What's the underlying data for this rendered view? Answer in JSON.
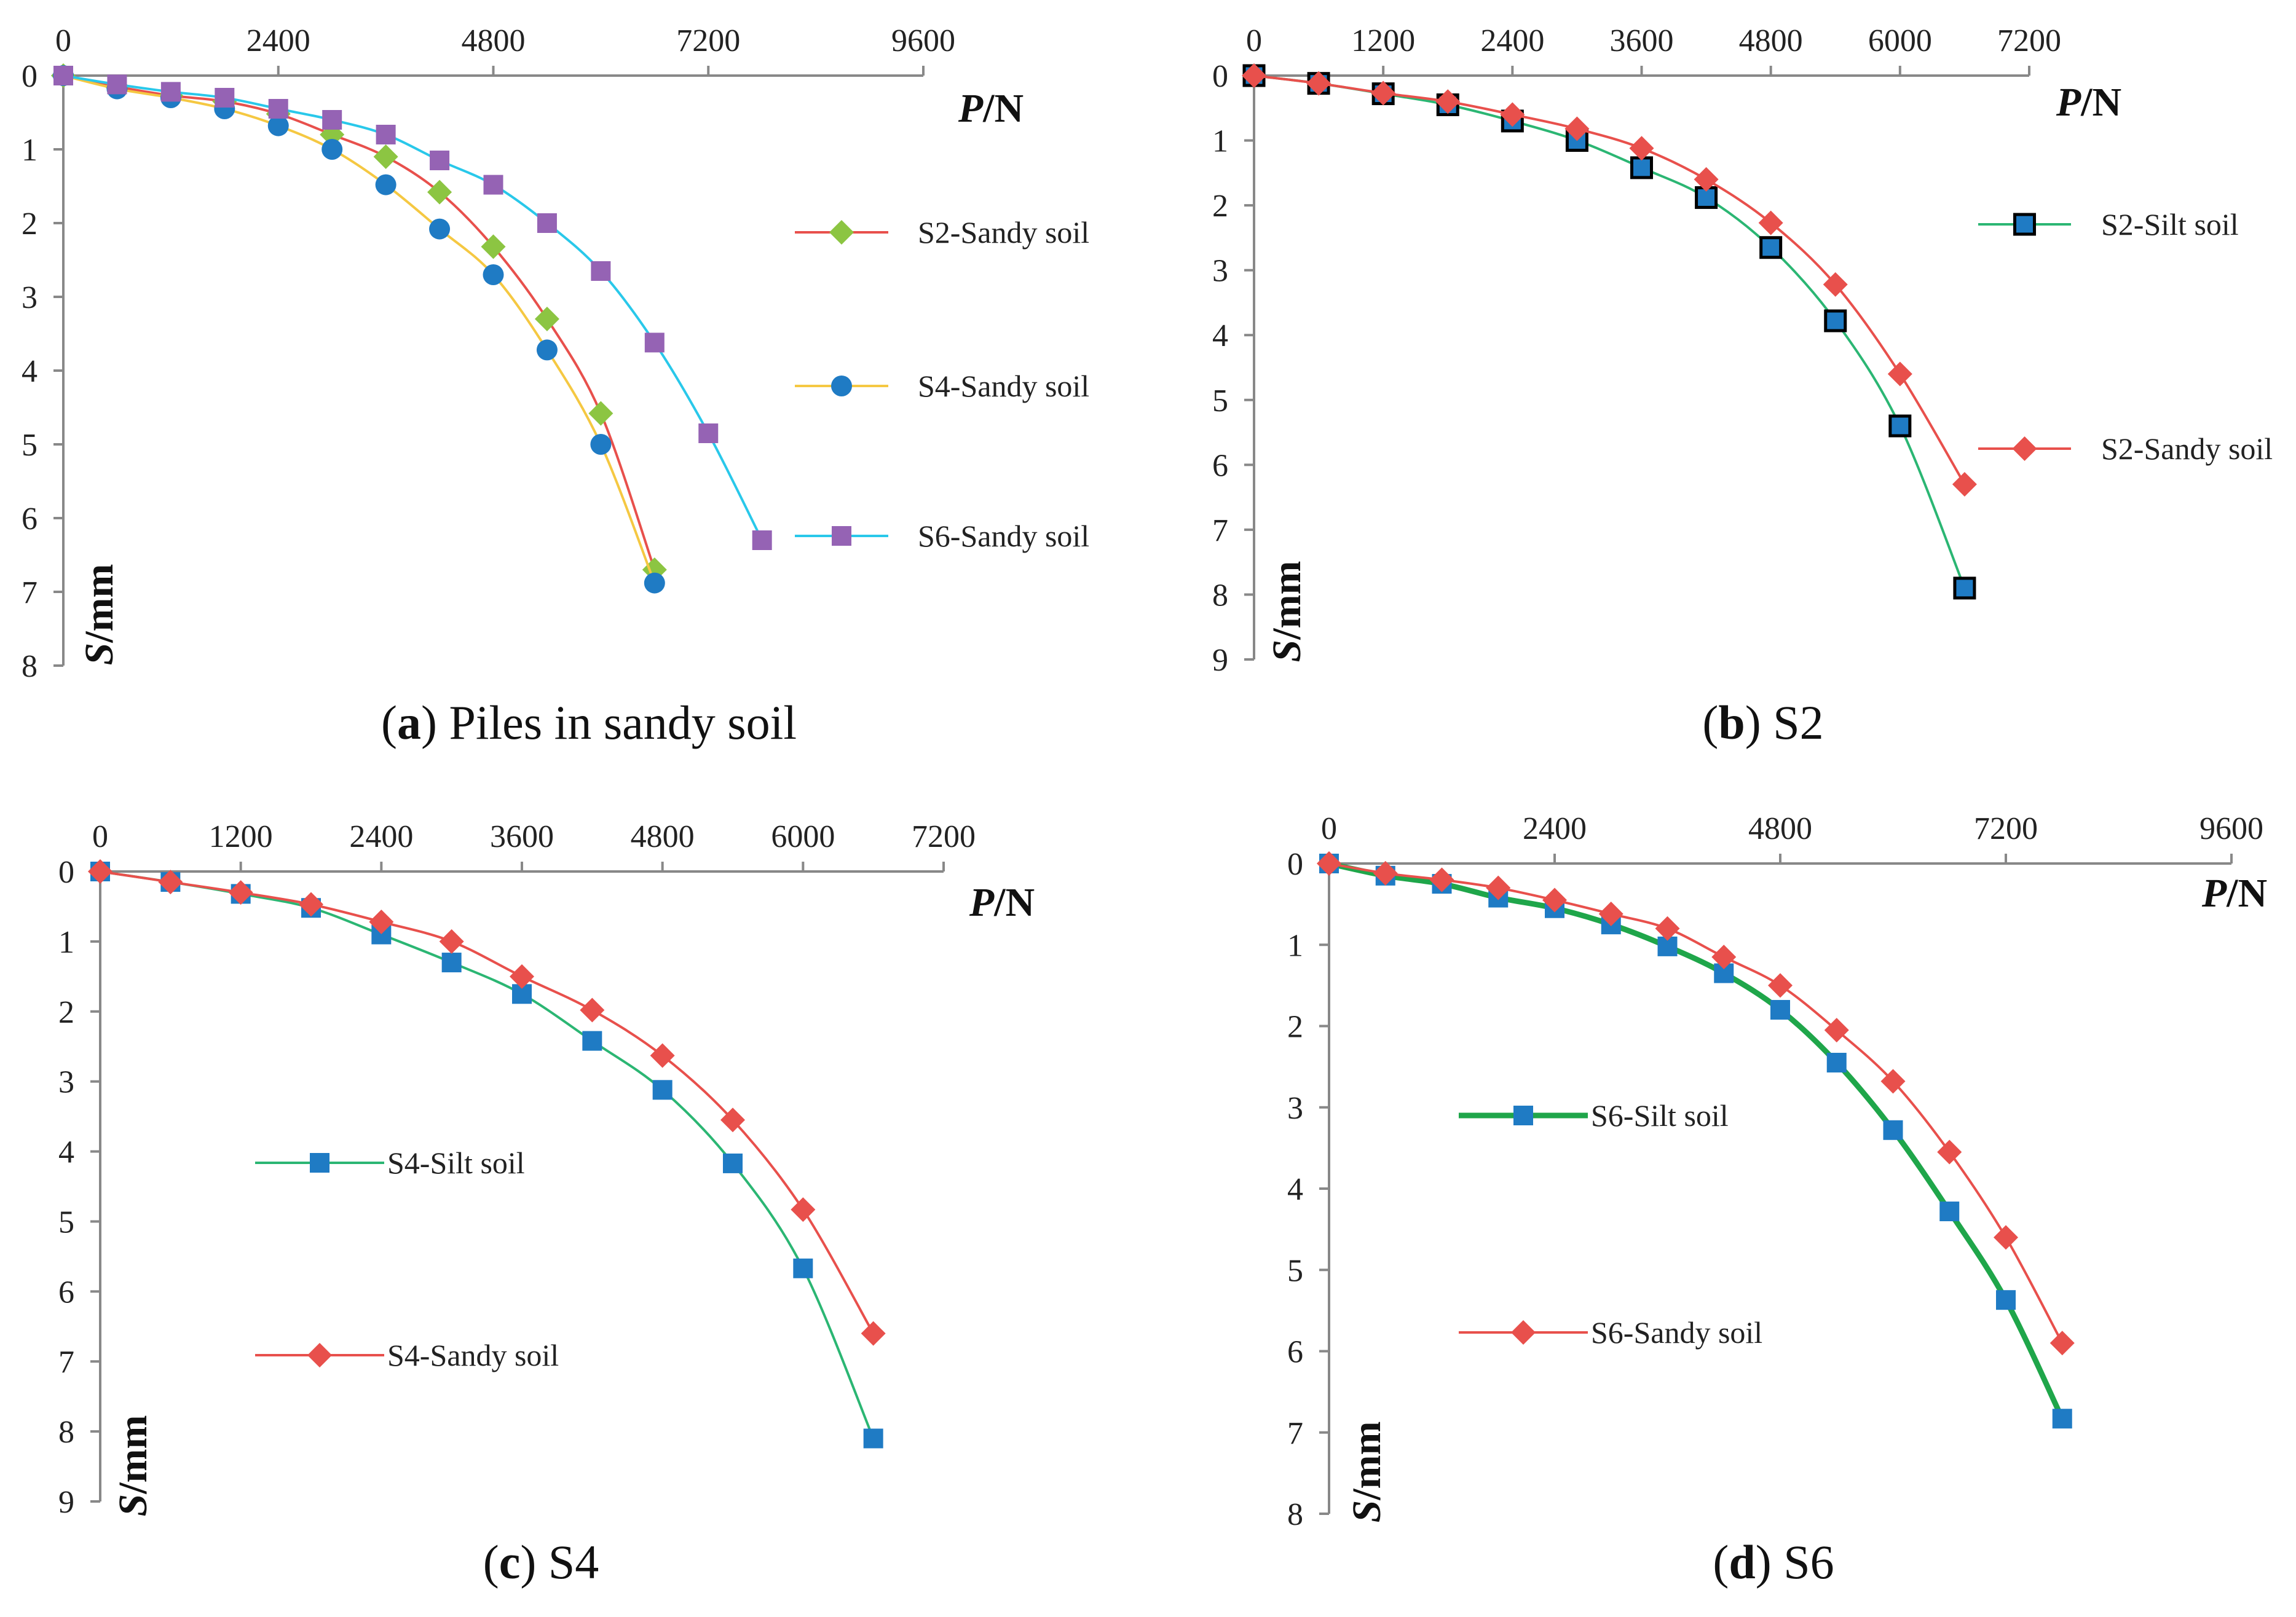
{
  "chart_data": [
    {
      "type": "line",
      "caption": {
        "letter": "a",
        "text": "Piles in sandy soil"
      },
      "xlabel": {
        "italic": "P",
        "rest": "/N"
      },
      "ylabel": {
        "italic": "S",
        "rest": "/mm"
      },
      "x_ticks": [
        "0",
        "2400",
        "4800",
        "7200",
        "9600"
      ],
      "y_ticks": [
        "0",
        "1",
        "2",
        "3",
        "4",
        "5",
        "6",
        "7",
        "8"
      ],
      "xlim": [
        0,
        9600
      ],
      "ylim": [
        0,
        8
      ],
      "y_inverted": true,
      "x_axis_position": "top",
      "grid": false,
      "legend_position": "right",
      "series": [
        {
          "name": "S2-Sandy soil",
          "color": "#e8504c",
          "marker": "diamond",
          "marker_color": "#8cc542",
          "points": [
            [
              0,
              0.0
            ],
            [
              600,
              0.15
            ],
            [
              1200,
              0.27
            ],
            [
              1800,
              0.35
            ],
            [
              2400,
              0.52
            ],
            [
              3000,
              0.8
            ],
            [
              3600,
              1.1
            ],
            [
              4200,
              1.58
            ],
            [
              4800,
              2.32
            ],
            [
              5400,
              3.3
            ],
            [
              6000,
              4.58
            ],
            [
              6600,
              6.7
            ]
          ]
        },
        {
          "name": "S4-Sandy soil",
          "color": "#f5c842",
          "marker": "circle",
          "marker_color": "#1f7bc4",
          "points": [
            [
              0,
              0.0
            ],
            [
              600,
              0.18
            ],
            [
              1200,
              0.3
            ],
            [
              1800,
              0.45
            ],
            [
              2400,
              0.68
            ],
            [
              3000,
              1.0
            ],
            [
              3600,
              1.48
            ],
            [
              4200,
              2.08
            ],
            [
              4800,
              2.7
            ],
            [
              5400,
              3.72
            ],
            [
              6000,
              5.0
            ],
            [
              6600,
              6.88
            ]
          ]
        },
        {
          "name": "S6-Sandy soil",
          "color": "#29c8ea",
          "marker": "square",
          "marker_color": "#9563b4",
          "points": [
            [
              0,
              0.0
            ],
            [
              600,
              0.12
            ],
            [
              1200,
              0.22
            ],
            [
              1800,
              0.3
            ],
            [
              2400,
              0.45
            ],
            [
              3000,
              0.6
            ],
            [
              3600,
              0.8
            ],
            [
              4200,
              1.15
            ],
            [
              4800,
              1.48
            ],
            [
              5400,
              2.0
            ],
            [
              6000,
              2.65
            ],
            [
              6600,
              3.62
            ],
            [
              7200,
              4.85
            ],
            [
              7800,
              6.3
            ]
          ]
        }
      ]
    },
    {
      "type": "line",
      "caption": {
        "letter": "b",
        "text": "S2"
      },
      "xlabel": {
        "italic": "P",
        "rest": "/N"
      },
      "ylabel": {
        "italic": "S",
        "rest": "/mm"
      },
      "x_ticks": [
        "0",
        "1200",
        "2400",
        "3600",
        "4800",
        "6000",
        "7200"
      ],
      "y_ticks": [
        "0",
        "1",
        "2",
        "3",
        "4",
        "5",
        "6",
        "7",
        "8",
        "9"
      ],
      "xlim": [
        0,
        7200
      ],
      "ylim": [
        0,
        9
      ],
      "y_inverted": true,
      "x_axis_position": "top",
      "grid": false,
      "legend_position": "right",
      "series": [
        {
          "name": "S2-Silt soil",
          "color": "#2bb673",
          "marker": "square",
          "marker_color": "#1f7bc4",
          "marker_stroke": "#000000",
          "points": [
            [
              0,
              0.0
            ],
            [
              600,
              0.12
            ],
            [
              1200,
              0.28
            ],
            [
              1800,
              0.45
            ],
            [
              2400,
              0.7
            ],
            [
              3000,
              1.0
            ],
            [
              3600,
              1.42
            ],
            [
              4200,
              1.88
            ],
            [
              4800,
              2.65
            ],
            [
              5400,
              3.78
            ],
            [
              6000,
              5.4
            ],
            [
              6600,
              7.9
            ]
          ]
        },
        {
          "name": "S2-Sandy soil",
          "color": "#e8504c",
          "marker": "diamond",
          "marker_color": "#e8504c",
          "points": [
            [
              0,
              0.0
            ],
            [
              600,
              0.12
            ],
            [
              1200,
              0.27
            ],
            [
              1800,
              0.4
            ],
            [
              2400,
              0.6
            ],
            [
              3000,
              0.82
            ],
            [
              3600,
              1.12
            ],
            [
              4200,
              1.6
            ],
            [
              4800,
              2.27
            ],
            [
              5400,
              3.22
            ],
            [
              6000,
              4.6
            ],
            [
              6600,
              6.3
            ]
          ]
        }
      ]
    },
    {
      "type": "line",
      "caption": {
        "letter": "c",
        "text": "S4"
      },
      "xlabel": {
        "italic": "P",
        "rest": "/N"
      },
      "ylabel": {
        "italic": "S",
        "rest": "/mm"
      },
      "x_ticks": [
        "0",
        "1200",
        "2400",
        "3600",
        "4800",
        "6000",
        "7200"
      ],
      "y_ticks": [
        "0",
        "1",
        "2",
        "3",
        "4",
        "5",
        "6",
        "7",
        "8",
        "9"
      ],
      "xlim": [
        0,
        7200
      ],
      "ylim": [
        0,
        9
      ],
      "y_inverted": true,
      "x_axis_position": "top",
      "grid": false,
      "legend_position": "center-left",
      "series": [
        {
          "name": "S4-Silt soil",
          "color": "#2bb673",
          "marker": "square",
          "marker_color": "#1f7bc4",
          "points": [
            [
              0,
              0.0
            ],
            [
              600,
              0.15
            ],
            [
              1200,
              0.32
            ],
            [
              1800,
              0.52
            ],
            [
              2400,
              0.9
            ],
            [
              3000,
              1.3
            ],
            [
              3600,
              1.75
            ],
            [
              4200,
              2.42
            ],
            [
              4800,
              3.12
            ],
            [
              5400,
              4.17
            ],
            [
              6000,
              5.67
            ],
            [
              6600,
              8.1
            ]
          ]
        },
        {
          "name": "S4-Sandy soil",
          "color": "#e8504c",
          "marker": "diamond",
          "marker_color": "#e8504c",
          "points": [
            [
              0,
              0.0
            ],
            [
              600,
              0.15
            ],
            [
              1200,
              0.3
            ],
            [
              1800,
              0.47
            ],
            [
              2400,
              0.72
            ],
            [
              3000,
              1.0
            ],
            [
              3600,
              1.5
            ],
            [
              4200,
              1.98
            ],
            [
              4800,
              2.63
            ],
            [
              5400,
              3.55
            ],
            [
              6000,
              4.83
            ],
            [
              6600,
              6.6
            ]
          ]
        }
      ]
    },
    {
      "type": "line",
      "caption": {
        "letter": "d",
        "text": "S6"
      },
      "xlabel": {
        "italic": "P",
        "rest": "/N"
      },
      "ylabel": {
        "italic": "S",
        "rest": "/mm"
      },
      "x_ticks": [
        "0",
        "2400",
        "4800",
        "7200",
        "9600"
      ],
      "y_ticks": [
        "0",
        "1",
        "2",
        "3",
        "4",
        "5",
        "6",
        "7",
        "8"
      ],
      "xlim": [
        0,
        9600
      ],
      "ylim": [
        0,
        8
      ],
      "y_inverted": true,
      "x_axis_position": "top",
      "grid": false,
      "legend_position": "center-left",
      "series": [
        {
          "name": "S6-Silt soil",
          "color": "#1fa64a",
          "line_width": "thick",
          "marker": "square",
          "marker_color": "#1f7bc4",
          "points": [
            [
              0,
              0.0
            ],
            [
              600,
              0.15
            ],
            [
              1200,
              0.25
            ],
            [
              1800,
              0.42
            ],
            [
              2400,
              0.55
            ],
            [
              3000,
              0.75
            ],
            [
              3600,
              1.02
            ],
            [
              4200,
              1.35
            ],
            [
              4800,
              1.8
            ],
            [
              5400,
              2.45
            ],
            [
              6000,
              3.28
            ],
            [
              6600,
              4.28
            ],
            [
              7200,
              5.37
            ],
            [
              7800,
              6.83
            ]
          ]
        },
        {
          "name": "S6-Sandy soil",
          "color": "#e8504c",
          "marker": "diamond",
          "marker_color": "#e8504c",
          "points": [
            [
              0,
              0.0
            ],
            [
              600,
              0.12
            ],
            [
              1200,
              0.2
            ],
            [
              1800,
              0.3
            ],
            [
              2400,
              0.45
            ],
            [
              3000,
              0.62
            ],
            [
              3600,
              0.8
            ],
            [
              4200,
              1.15
            ],
            [
              4800,
              1.5
            ],
            [
              5400,
              2.05
            ],
            [
              6000,
              2.68
            ],
            [
              6600,
              3.55
            ],
            [
              7200,
              4.6
            ],
            [
              7800,
              5.9
            ]
          ]
        }
      ]
    }
  ]
}
